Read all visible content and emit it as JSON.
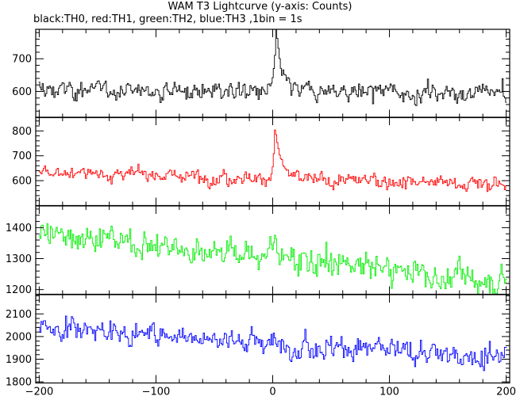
{
  "title": "WAM T3 Lightcurve (y-axis: Counts)",
  "subtitle": "black:TH0, red:TH1, green:TH2, blue:TH3 ,1bin = 1s",
  "chart_data": {
    "type": "line",
    "x_axis": {
      "ticks": [
        -200,
        -100,
        0,
        100,
        200
      ],
      "range": [
        -203,
        203
      ]
    },
    "panels": [
      {
        "name": "TH0",
        "color": "#000000",
        "ylim": [
          520,
          790
        ],
        "yticks": [
          600,
          700
        ],
        "baseline_start": 605,
        "baseline_end": 595,
        "noise": 22,
        "peak": {
          "x": 3,
          "height": 165,
          "rise": 2,
          "decay": 5
        }
      },
      {
        "name": "TH1",
        "color": "#ff0000",
        "ylim": [
          500,
          855
        ],
        "yticks": [
          600,
          700,
          800
        ],
        "baseline_start": 635,
        "baseline_end": 585,
        "noise": 22,
        "peak": {
          "x": 2,
          "height": 200,
          "rise": 1.5,
          "decay": 5
        }
      },
      {
        "name": "TH2",
        "color": "#00ee00",
        "ylim": [
          1185,
          1470
        ],
        "yticks": [
          1200,
          1300,
          1400
        ],
        "baseline_start": 1385,
        "baseline_end": 1225,
        "noise": 35,
        "peak": {
          "x": 2,
          "height": 60,
          "rise": 2,
          "decay": 6
        }
      },
      {
        "name": "TH3",
        "color": "#0000ff",
        "ylim": [
          1795,
          2185
        ],
        "yticks": [
          1800,
          1900,
          2000,
          2100
        ],
        "baseline_start": 2045,
        "baseline_end": 1905,
        "noise": 40,
        "peak": null
      }
    ]
  }
}
